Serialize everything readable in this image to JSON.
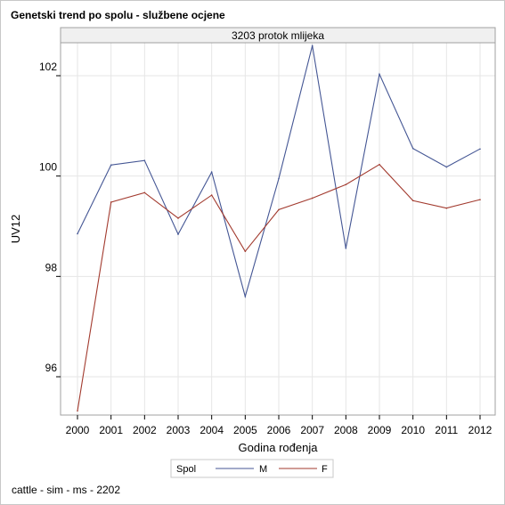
{
  "title": "Genetski trend po spolu - službene ocjene",
  "footnote": "cattle - sim - ms - 2202",
  "colors": {
    "M": "#445694",
    "F": "#a23a2e",
    "grid": "#e6e6e6",
    "panel_header_bg": "#f0f0f0",
    "border": "#a0a0a0"
  },
  "chart_data": {
    "type": "line",
    "panel_label": "3203 protok mlijeka",
    "xlabel": "Godina rođenja",
    "ylabel": "UV12",
    "x": [
      2000,
      2001,
      2002,
      2003,
      2004,
      2005,
      2006,
      2007,
      2008,
      2009,
      2010,
      2011,
      2012
    ],
    "x_ticks": [
      "2000",
      "2001",
      "2002",
      "2003",
      "2004",
      "2005",
      "2006",
      "2007",
      "2008",
      "2009",
      "2010",
      "2011",
      "2012"
    ],
    "y_ticks": [
      96,
      98,
      100,
      102
    ],
    "ylim": [
      95.3,
      102.65
    ],
    "grid": true,
    "legend": {
      "title": "Spol",
      "placement": "bottom-center"
    },
    "series": [
      {
        "name": "M",
        "values": [
          98.85,
          100.22,
          100.31,
          98.84,
          100.08,
          97.6,
          99.95,
          102.6,
          98.56,
          102.03,
          100.55,
          100.18,
          100.54
        ]
      },
      {
        "name": "F",
        "values": [
          95.32,
          99.48,
          99.67,
          99.16,
          99.62,
          98.5,
          99.33,
          99.56,
          99.83,
          100.23,
          99.51,
          99.36,
          99.53
        ]
      }
    ]
  }
}
